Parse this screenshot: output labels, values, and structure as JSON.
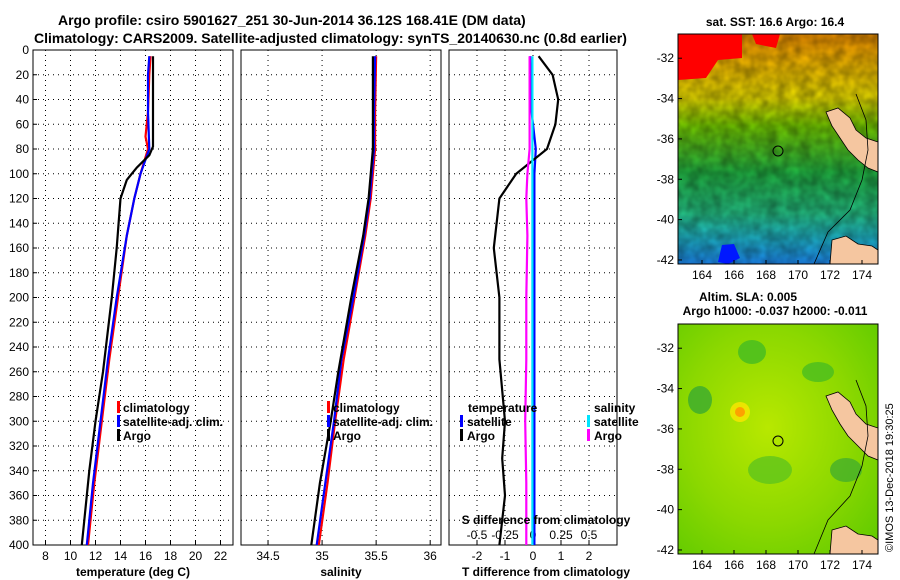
{
  "header": {
    "line1": "Argo profile: csiro 5901627_251 30-Jun-2014 36.12S 168.41E (DM data)",
    "line2": "Climatology: CARS2009. Satellite-adjusted climatology: synTS_20140630.nc (0.8d earlier)"
  },
  "colors": {
    "climatology": "#ff0000",
    "satellite": "#0000ff",
    "argo": "#000000",
    "sal_satellite": "#00e5ff",
    "sal_argo": "#ff00ff"
  },
  "chart_data": [
    {
      "type": "line",
      "name": "temperature",
      "xlabel": "temperature (deg C)",
      "ylabel": "",
      "xlim": [
        7,
        23
      ],
      "ylim": [
        400,
        0
      ],
      "xticks": [
        "8",
        "10",
        "12",
        "14",
        "16",
        "18",
        "20",
        "22"
      ],
      "xtick_values": [
        8,
        10,
        12,
        14,
        16,
        18,
        20,
        22
      ],
      "yticks": [
        "0",
        "20",
        "40",
        "60",
        "80",
        "100",
        "120",
        "140",
        "160",
        "180",
        "200",
        "220",
        "240",
        "260",
        "280",
        "300",
        "320",
        "340",
        "360",
        "380",
        "400"
      ],
      "ytick_values": [
        0,
        20,
        40,
        60,
        80,
        100,
        120,
        140,
        160,
        180,
        200,
        220,
        240,
        260,
        280,
        300,
        320,
        340,
        360,
        380,
        400
      ],
      "grid": true,
      "legend": [
        "climatology",
        "satellite-adj. clim.",
        "Argo"
      ],
      "series": [
        {
          "name": "climatology",
          "depth": [
            5,
            20,
            50,
            70,
            80,
            100,
            120,
            150,
            200,
            250,
            300,
            350,
            400
          ],
          "values": [
            16.4,
            16.3,
            16.2,
            16.0,
            16.2,
            15.6,
            15.1,
            14.5,
            13.8,
            13.1,
            12.5,
            11.9,
            11.4
          ]
        },
        {
          "name": "satellite-adj. clim.",
          "depth": [
            5,
            20,
            50,
            80,
            100,
            120,
            150,
            200,
            250,
            300,
            350,
            400
          ],
          "values": [
            16.3,
            16.2,
            16.2,
            16.3,
            15.6,
            15.1,
            14.5,
            13.7,
            13.0,
            12.4,
            11.8,
            11.3
          ]
        },
        {
          "name": "Argo",
          "depth": [
            5,
            20,
            50,
            78,
            85,
            95,
            105,
            120,
            160,
            200,
            260,
            300,
            340,
            380,
            400
          ],
          "values": [
            16.6,
            16.6,
            16.6,
            16.6,
            16.3,
            15.3,
            14.5,
            14.0,
            13.7,
            13.3,
            12.6,
            12.0,
            11.5,
            11.1,
            10.9
          ]
        }
      ]
    },
    {
      "type": "line",
      "name": "salinity",
      "xlabel": "salinity",
      "ylabel": "",
      "xlim": [
        34.25,
        36.1
      ],
      "ylim": [
        400,
        0
      ],
      "xticks": [
        "34.5",
        "35",
        "35.5",
        "36"
      ],
      "xtick_values": [
        34.5,
        35.0,
        35.5,
        36.0
      ],
      "grid": true,
      "legend": [
        "climatology",
        "satellite-adj. clim.",
        "Argo"
      ],
      "series": [
        {
          "name": "climatology",
          "depth": [
            5,
            50,
            80,
            120,
            150,
            200,
            250,
            300,
            350,
            400
          ],
          "values": [
            35.5,
            35.49,
            35.49,
            35.45,
            35.4,
            35.3,
            35.2,
            35.12,
            35.05,
            34.97
          ]
        },
        {
          "name": "satellite-adj. clim.",
          "depth": [
            5,
            50,
            80,
            120,
            150,
            200,
            250,
            300,
            350,
            400
          ],
          "values": [
            35.49,
            35.48,
            35.48,
            35.44,
            35.39,
            35.29,
            35.18,
            35.11,
            35.03,
            34.95
          ]
        },
        {
          "name": "Argo",
          "depth": [
            5,
            50,
            80,
            120,
            150,
            200,
            260,
            300,
            350,
            400
          ],
          "values": [
            35.47,
            35.47,
            35.47,
            35.43,
            35.38,
            35.27,
            35.15,
            35.08,
            34.98,
            34.9
          ]
        }
      ]
    },
    {
      "type": "line",
      "name": "difference",
      "xlabel": "T difference from climatology",
      "xlim": [
        -3,
        3
      ],
      "ylim": [
        400,
        0
      ],
      "xticks": [
        "-2",
        "-1",
        "0",
        "1",
        "2"
      ],
      "xtick_values": [
        -2,
        -1,
        0,
        1,
        2
      ],
      "sal_axis_label": "S difference from climatology",
      "sal_xticks": [
        "-0.5",
        "-0.25",
        "0",
        "0.25",
        "0.5"
      ],
      "sal_xtick_values": [
        -0.5,
        -0.25,
        0,
        0.25,
        0.5
      ],
      "sal_xlim": [
        -0.75,
        0.75
      ],
      "grid": true,
      "legend_left_title": "temperature",
      "legend_right_title": "salinity",
      "legend_left": [
        "satellite",
        "Argo"
      ],
      "legend_right": [
        "satellite",
        "Argo"
      ],
      "series": [
        {
          "name": "T satellite",
          "depth": [
            5,
            50,
            80,
            100,
            150,
            200,
            250,
            300,
            350,
            400
          ],
          "values": [
            -0.1,
            -0.05,
            0.1,
            0.05,
            0.05,
            0.05,
            0.05,
            0.05,
            0.05,
            0.05
          ]
        },
        {
          "name": "T Argo",
          "depth": [
            5,
            20,
            40,
            60,
            80,
            100,
            120,
            160,
            200,
            250,
            300,
            330,
            360,
            400
          ],
          "values": [
            0.2,
            0.7,
            0.9,
            0.8,
            0.5,
            -0.6,
            -1.2,
            -1.4,
            -1.2,
            -1.2,
            -1.0,
            -1.1,
            -1.0,
            -1.2
          ]
        },
        {
          "name": "S satellite",
          "depth": [
            5,
            50,
            100,
            200,
            300,
            400
          ],
          "values": [
            -0.005,
            -0.005,
            -0.005,
            -0.005,
            -0.005,
            -0.005
          ]
        },
        {
          "name": "S Argo",
          "depth": [
            5,
            50,
            80,
            100,
            120,
            150,
            200,
            250,
            300,
            350,
            400
          ],
          "values": [
            -0.03,
            -0.03,
            -0.03,
            -0.05,
            -0.06,
            -0.05,
            -0.06,
            -0.06,
            -0.07,
            -0.06,
            -0.06
          ]
        }
      ]
    },
    {
      "type": "heatmap",
      "name": "sst_map",
      "title": "sat. SST: 16.6 Argo: 16.4",
      "xticks": [
        "164",
        "166",
        "168",
        "170",
        "172",
        "174"
      ],
      "xtick_values": [
        164,
        166,
        168,
        170,
        172,
        174
      ],
      "yticks": [
        "-32",
        "-34",
        "-36",
        "-38",
        "-40",
        "-42"
      ],
      "ytick_values": [
        -32,
        -34,
        -36,
        -38,
        -40,
        -42
      ],
      "xlim": [
        162.5,
        175
      ],
      "ylim": [
        -42.2,
        -30.8
      ],
      "argo_position": [
        168.41,
        -36.12
      ]
    },
    {
      "type": "heatmap",
      "name": "sla_map",
      "title": "Altim. SLA: 0.005",
      "subtitle": "Argo h1000: -0.037 h2000: -0.011",
      "xticks": [
        "164",
        "166",
        "168",
        "170",
        "172",
        "174"
      ],
      "xtick_values": [
        164,
        166,
        168,
        170,
        172,
        174
      ],
      "yticks": [
        "-32",
        "-34",
        "-36",
        "-38",
        "-40",
        "-42"
      ],
      "ytick_values": [
        -32,
        -34,
        -36,
        -38,
        -40,
        -42
      ],
      "xlim": [
        162.5,
        175
      ],
      "ylim": [
        -42.2,
        -30.8
      ],
      "argo_position": [
        168.41,
        -36.12
      ]
    }
  ],
  "footer": {
    "stamp": "©IMOS 13-Dec-2018 19:30:25"
  }
}
